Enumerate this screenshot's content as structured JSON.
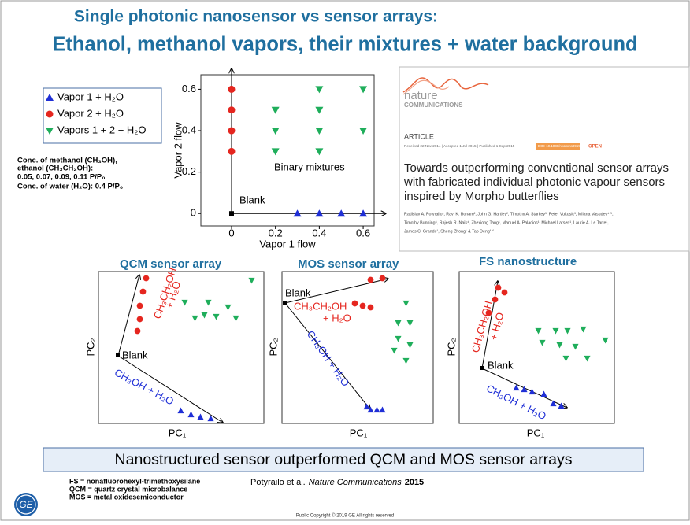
{
  "title": [
    "Single photonic nanosensor vs sensor arrays:",
    "Ethanol, methanol vapors, their mixtures + water background"
  ],
  "conditions": [
    "Conc. of methanol (CH₃OH),",
    "ethanol (CH₃CH₂OH):",
    "0.05, 0.07, 0.09, 0.11 P/P₀",
    "Conc. of water (H₂O): 0.4 P/P₀"
  ],
  "chart_data": {
    "type": "scatter",
    "xlabel": "Vapor 1 flow",
    "ylabel": "Vapor 2 flow",
    "xlim": [
      -0.14,
      0.65
    ],
    "ylim": [
      -0.06,
      0.67
    ],
    "xticks": [
      0,
      0.2,
      0.4,
      0.6
    ],
    "yticks": [
      0,
      0.2,
      0.4,
      0.6
    ],
    "series": [
      {
        "name": "Vapor 1 + H₂O",
        "color": "#1f2fd6",
        "marker": "triangle-up",
        "x": [
          0.3,
          0.4,
          0.5,
          0.6
        ],
        "y": [
          0,
          0,
          0,
          0
        ]
      },
      {
        "name": "Vapor 2 + H₂O",
        "color": "#e5261f",
        "marker": "circle",
        "x": [
          0,
          0,
          0,
          0
        ],
        "y": [
          0.3,
          0.4,
          0.5,
          0.6
        ]
      },
      {
        "name": "Vapors 1 + 2 + H₂O",
        "color": "#1fae5b",
        "marker": "triangle-down",
        "x": [
          0.4,
          0.6,
          0.2,
          0.4,
          0.2,
          0.4,
          0.6,
          0.2,
          0.4
        ],
        "y": [
          0.6,
          0.6,
          0.5,
          0.5,
          0.4,
          0.4,
          0.4,
          0.3,
          0.3
        ]
      }
    ],
    "blank": {
      "label": "Blank",
      "x": 0,
      "y": 0
    },
    "annotation": "Binary mixtures"
  },
  "article": {
    "journal": "nature",
    "journal_sub": "COMMUNICATIONS",
    "kind": "ARTICLE",
    "received": "Received 22 Nov 2014 | Accepted 1 Jul 2015 | Published 1 Sep 2015",
    "doi": "DOI: 10.1038/ncomms8959",
    "open": "OPEN",
    "title": [
      "Towards outperforming conventional sensor arrays",
      "with fabricated individual photonic vapour sensors",
      "inspired by Morpho butterflies"
    ],
    "authors": [
      "Radislav A. Potyrailo¹, Ravi K. Bonam², John G. Hartley², Timothy A. Starkey³, Peter Vukusic³, Milana Vasudev⁴,⁵,",
      "Timothy Bunning⁴, Rajesh R. Naik⁴, Zhexiong Tang¹, Manuel A. Palacios¹, Michael Larsen¹, Laurie A. Le Tarte¹,",
      "James C. Grande¹, Sheng Zhong¹ & Tao Deng¹,⁶"
    ]
  },
  "panels": [
    {
      "title": "QCM sensor array",
      "xlabel": "PC₁",
      "ylabel": "PC₂",
      "blank": "Blank",
      "ethanol": [
        "CH₃CH₂OH",
        "+ H₂O"
      ],
      "methanol": "CH₃OH + H₂O"
    },
    {
      "title": "MOS sensor array",
      "xlabel": "PC₁",
      "ylabel": "PC₂",
      "blank": "Blank",
      "ethanol": [
        "CH₃CH₂OH",
        "+ H₂O"
      ],
      "methanol": "CH₃OH + H₂O"
    },
    {
      "title": "FS nanostructure",
      "xlabel": "PC₁",
      "ylabel": "PC₂",
      "blank": "Blank",
      "ethanol": [
        "CH₃CH₂OH",
        "+ H₂O"
      ],
      "methanol": "CH₃OH + H₂O"
    }
  ],
  "conclusion": "Nanostructured sensor outperformed QCM and MOS sensor arrays",
  "footnotes": [
    "FS = nonafluorohexyl-trimethoxysilane",
    "QCM = quartz crystal microbalance",
    "MOS = metal oxidesemiconductor"
  ],
  "citation": {
    "authors": "Potyrailo et al.",
    "journal": "Nature Communications",
    "year": "2015"
  },
  "logo": "GE",
  "copyright": "Public Copyright © 2019 GE All rights reserved"
}
